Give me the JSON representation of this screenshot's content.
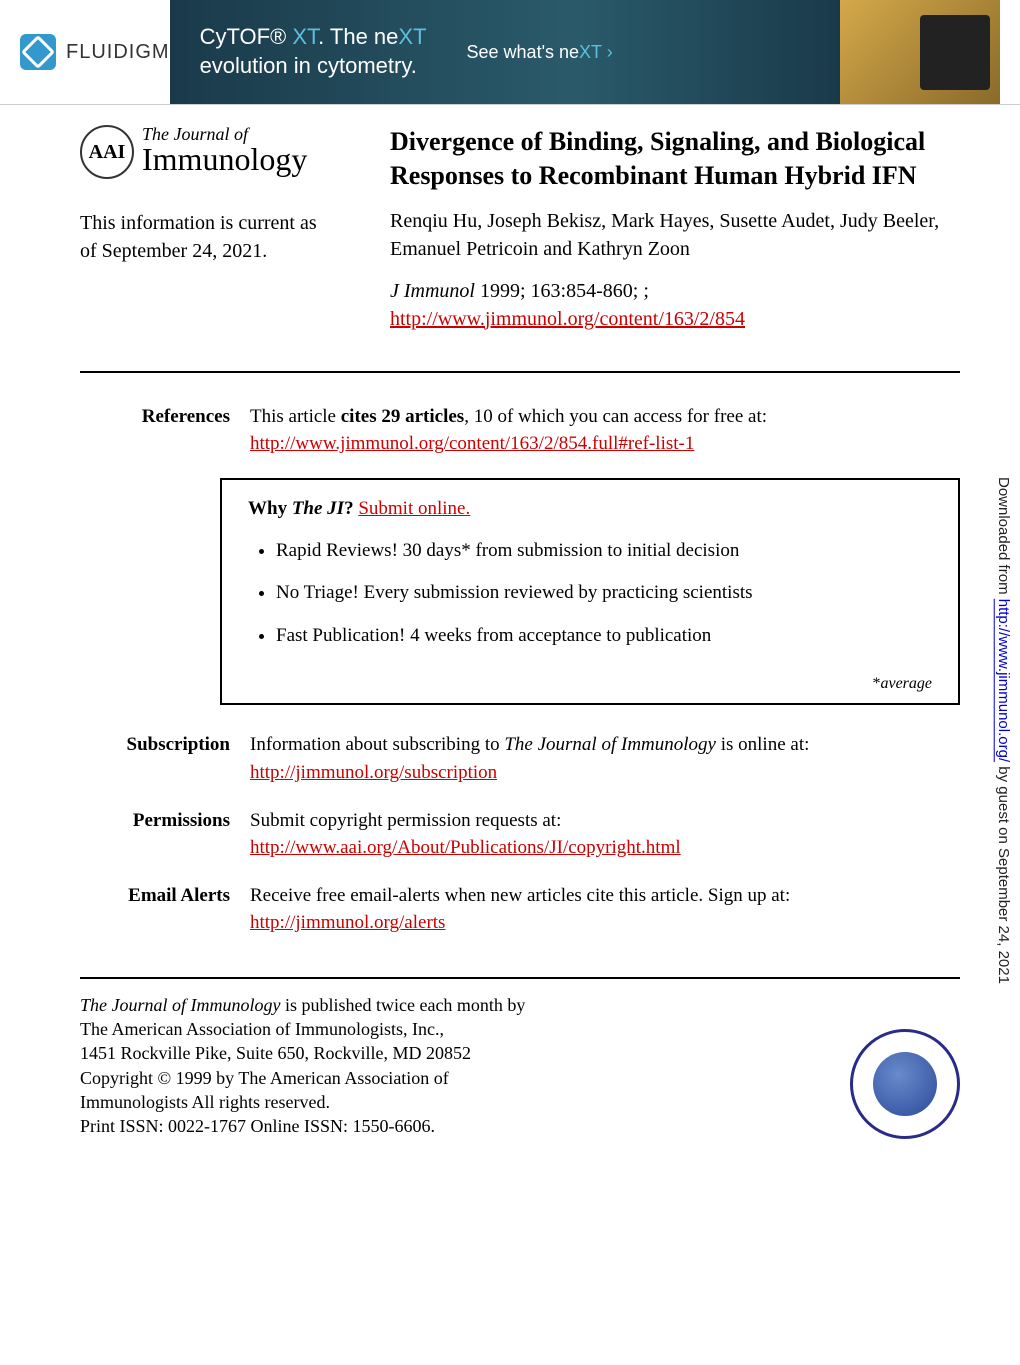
{
  "ad": {
    "logo_text": "FLUIDIGM",
    "headline_pre": "CyTOF",
    "headline_reg": "®",
    "headline_highlight": " XT",
    "headline_post": ". The ne",
    "headline_highlight2": "XT",
    "subline": "evolution in cytometry.",
    "cta_pre": "See what's ne",
    "cta_highlight": "XT ›"
  },
  "journal": {
    "badge": "AAI",
    "title_top": "The Journal of",
    "title_main": "Immunology"
  },
  "current_info_line1": "This information is current as",
  "current_info_line2": "of September 24, 2021.",
  "article": {
    "title": "Divergence of Binding, Signaling, and Biological Responses to Recombinant Human Hybrid IFN",
    "authors": "Renqiu Hu, Joseph Bekisz, Mark Hayes, Susette Audet, Judy Beeler, Emanuel Petricoin and Kathryn Zoon",
    "journal_name": "J Immunol",
    "citation_rest": " 1999; 163:854-860; ;",
    "url": "http://www.jimmunol.org/content/163/2/854"
  },
  "references": {
    "label": "References",
    "text_pre": "This article ",
    "cites": "cites 29 articles",
    "text_post": ", 10 of which you can access for free at:",
    "url": "http://www.jimmunol.org/content/163/2/854.full#ref-list-1"
  },
  "whybox": {
    "title_pre": "Why ",
    "title_ital": "The JI",
    "title_post": "?",
    "submit_link": " Submit online.",
    "items": [
      {
        "bold": "Rapid Reviews! 30 days*",
        "rest": " from submission to initial decision"
      },
      {
        "bold": "No Triage!",
        "rest": " Every submission reviewed by practicing scientists"
      },
      {
        "bold": "Fast Publication!",
        "rest": " 4 weeks from acceptance to publication"
      }
    ],
    "note_star": "*",
    "note_text": "average"
  },
  "rows": {
    "subscription": {
      "label": "Subscription",
      "text": "Information about subscribing to ",
      "ital": "The Journal of Immunology",
      "text2": " is online at:",
      "url": "http://jimmunol.org/subscription"
    },
    "permissions": {
      "label": "Permissions",
      "text": "Submit copyright permission requests at:",
      "url": "http://www.aai.org/About/Publications/JI/copyright.html"
    },
    "alerts": {
      "label": "Email Alerts",
      "text": "Receive free email-alerts when new articles cite this article. Sign up at:",
      "url": "http://jimmunol.org/alerts"
    }
  },
  "footer": {
    "line1_ital": "The Journal of Immunology",
    "line1_rest": " is published twice each month by",
    "line2": "The American Association of Immunologists, Inc.,",
    "line3": "1451 Rockville Pike, Suite 650, Rockville, MD 20852",
    "line4": "Copyright © 1999 by The American Association of",
    "line5": "Immunologists All rights reserved.",
    "line6": "Print ISSN: 0022-1767 Online ISSN: 1550-6606."
  },
  "sidebar": {
    "pre": "Downloaded from ",
    "url": "http://www.jimmunol.org/",
    "post": " by guest on September 24, 2021"
  },
  "colors": {
    "link_red": "#cc0000",
    "link_blue": "#0000cc",
    "ad_teal": "#5bc0de",
    "ad_bg": "#1a3a4a"
  }
}
